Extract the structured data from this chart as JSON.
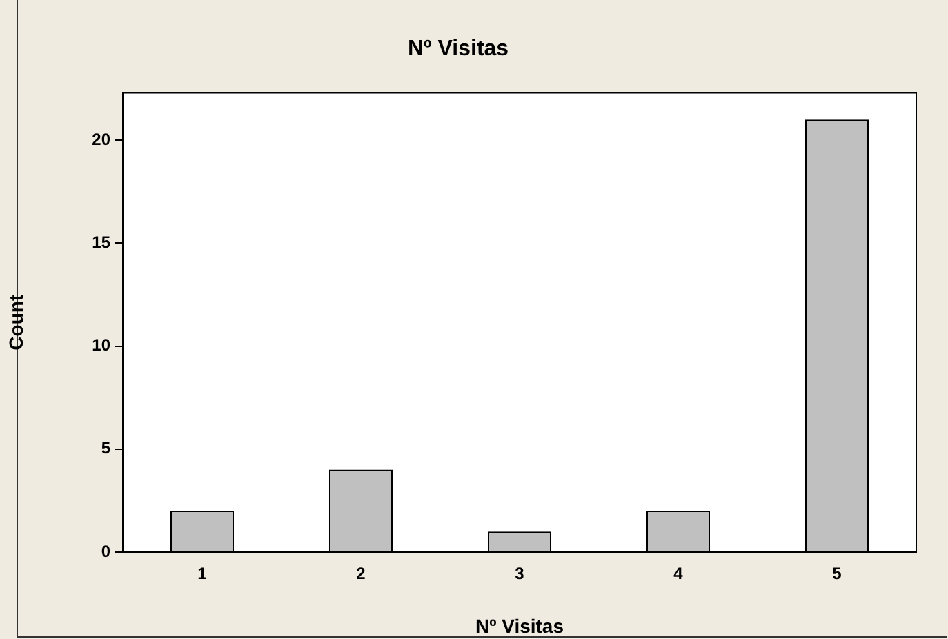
{
  "chart_data": {
    "type": "bar",
    "title": "Nº Visitas",
    "xlabel": "Nº Visitas",
    "ylabel": "Count",
    "categories": [
      "1",
      "2",
      "3",
      "4",
      "5"
    ],
    "values": [
      2,
      4,
      1,
      2,
      21
    ],
    "color": "#c0c0c0",
    "ylim": [
      0,
      22.3
    ],
    "yticks": [
      0,
      5,
      10,
      15,
      20
    ],
    "grid": false,
    "legend": false
  }
}
